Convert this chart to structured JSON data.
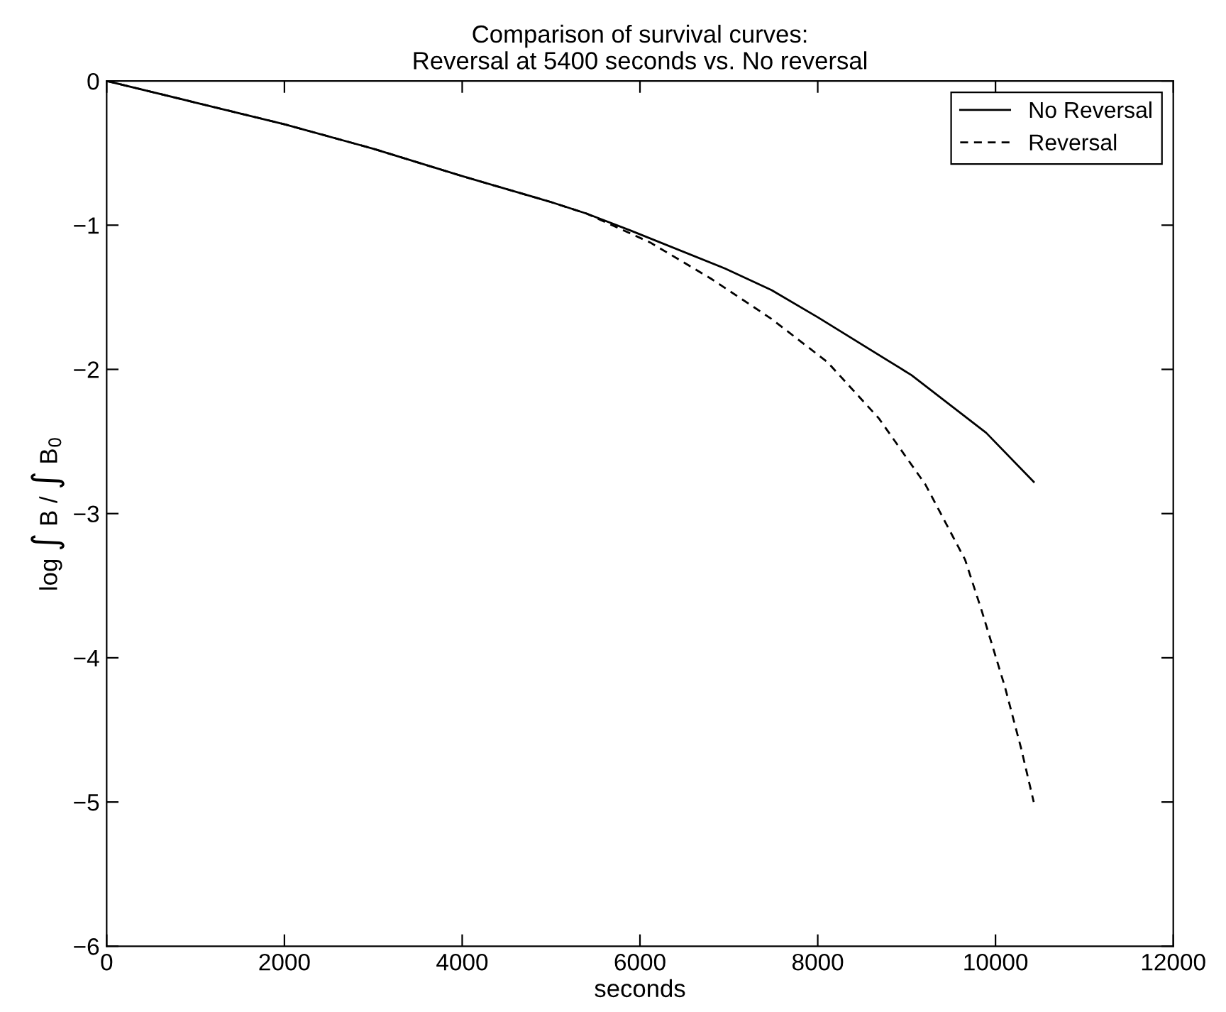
{
  "chart_data": {
    "type": "line",
    "title": "Comparison of survival curves:\nReversal at 5400 seconds vs. No reversal",
    "xlabel": "seconds",
    "ylabel": "log ∫ B / ∫ B$_{0}$",
    "xlim": [
      0,
      12000
    ],
    "xticks": [
      0,
      2000,
      4000,
      6000,
      8000,
      10000,
      12000
    ],
    "ylim": [
      -6,
      0
    ],
    "yticks": [
      -6,
      -5,
      -4,
      -3,
      -2,
      -1,
      0
    ],
    "grid": false,
    "legend": "top right",
    "marker": "none",
    "series": [
      {
        "name": "No Reversal",
        "color": "#000000",
        "line_style": "solid",
        "x": [
          0,
          1000,
          2000,
          3000,
          4000,
          5000,
          5400,
          5905,
          6955,
          7480,
          8005,
          9055,
          9895,
          10430
        ],
        "values": [
          0,
          -0.15,
          -0.3,
          -0.47,
          -0.66,
          -0.84,
          -0.92,
          -1.04,
          -1.3,
          -1.45,
          -1.64,
          -2.04,
          -2.44,
          -2.78
        ]
      },
      {
        "name": "Reversal",
        "color": "#000000",
        "line_style": "dashed",
        "x": [
          0,
          1000,
          2000,
          3000,
          4000,
          5000,
          5400,
          6115,
          6797,
          7480,
          8110,
          8688,
          9213,
          9658,
          9843,
          10105,
          10289,
          10430
        ],
        "values": [
          0,
          -0.15,
          -0.3,
          -0.47,
          -0.66,
          -0.84,
          -0.92,
          -1.12,
          -1.37,
          -1.65,
          -1.95,
          -2.34,
          -2.8,
          -3.32,
          -3.67,
          -4.2,
          -4.63,
          -5.0
        ]
      }
    ]
  }
}
